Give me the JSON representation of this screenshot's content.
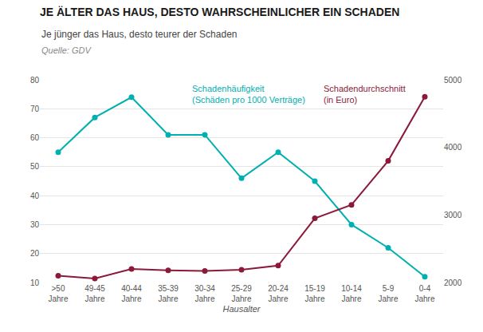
{
  "chart_data": {
    "type": "line",
    "title": "JE ÄLTER DAS HAUS, DESTO WAHRSCHEINLICHER EIN SCHADEN",
    "subtitle": "Je jünger das Haus, desto teurer der Schaden",
    "source": "Quelle: GDV",
    "xlabel": "Hausalter",
    "annotations": [
      "Schadenhäufigkeit\n(Schäden pro 1000 Verträge)",
      "Schadendurchschnitt\n(in Euro)"
    ],
    "categories": [
      ">50\nJahre",
      "49-45\nJahre",
      "40-44\nJahre",
      "35-39\nJahre",
      "30-34\nJahre",
      "25-29\nJahre",
      "20-24\nJahre",
      "15-19\nJahre",
      "10-14\nJahre",
      "5-9\nJahre",
      "0-4\nJahre"
    ],
    "series": [
      {
        "color": "#00B0B0",
        "marker": "circle",
        "values": [
          55,
          67,
          74,
          61,
          61,
          46,
          55,
          45,
          30,
          22,
          12
        ]
      },
      {
        "color": "#8B1A3A",
        "marker": "circle",
        "axis": "y2",
        "values": [
          2100,
          2060,
          2200,
          2180,
          2170,
          2190,
          2250,
          2950,
          3150,
          3800,
          4750
        ]
      }
    ],
    "ylim": [
      10,
      80
    ],
    "yticks": [
      10,
      20,
      30,
      40,
      50,
      60,
      70,
      80
    ],
    "y2lim": [
      2000,
      5000
    ],
    "y2ticks": [
      2000,
      3000,
      4000,
      5000
    ],
    "grid": true
  }
}
